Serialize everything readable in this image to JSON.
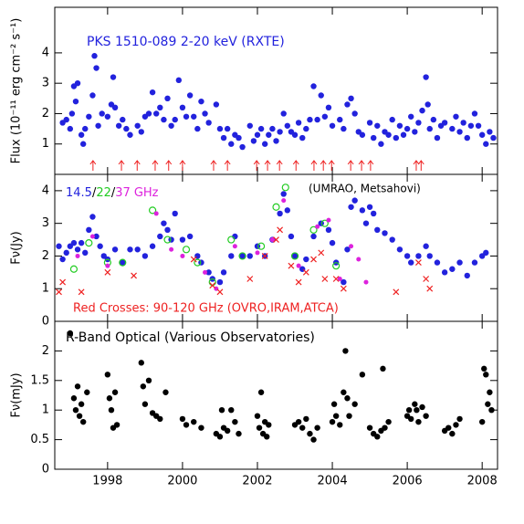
{
  "chart_data": [
    {
      "type": "scatter",
      "title": "PKS 1510-089   2-20 keV (RXTE)",
      "title_color": "#2222dd",
      "ylabel": "Flux (10⁻¹¹ erg cm⁻² s⁻¹)",
      "xlim": [
        1996.59,
        2008.41
      ],
      "ylim": [
        0,
        5.5
      ],
      "yticks": [
        1,
        2,
        3,
        4
      ],
      "arrow_color": "#ee2222",
      "arrows": [
        1997.61,
        1998.37,
        1998.79,
        1999.27,
        1999.63,
        2000.0,
        2000.83,
        2001.2,
        2001.98,
        2002.27,
        2002.59,
        2003.03,
        2003.51,
        2003.76,
        2003.98,
        2004.49,
        2004.78,
        2005.02,
        2006.24,
        2006.37
      ],
      "series": [
        {
          "color": "#2222dd",
          "marker": "circle",
          "x": [
            1996.8,
            1996.9,
            1997.0,
            1997.05,
            1997.1,
            1997.15,
            1997.2,
            1997.3,
            1997.35,
            1997.4,
            1997.5,
            1997.6,
            1997.65,
            1997.7,
            1997.75,
            1997.85,
            1998.0,
            1998.1,
            1998.15,
            1998.2,
            1998.3,
            1998.4,
            1998.5,
            1998.6,
            1998.8,
            1998.9,
            1999.0,
            1999.1,
            1999.2,
            1999.3,
            1999.4,
            1999.5,
            1999.6,
            1999.7,
            1999.8,
            1999.9,
            2000.0,
            2000.1,
            2000.2,
            2000.3,
            2000.4,
            2000.5,
            2000.6,
            2000.7,
            2000.9,
            2001.0,
            2001.1,
            2001.2,
            2001.3,
            2001.4,
            2001.5,
            2001.6,
            2001.8,
            2001.9,
            2002.0,
            2002.1,
            2002.2,
            2002.3,
            2002.4,
            2002.5,
            2002.6,
            2002.7,
            2002.8,
            2002.9,
            2003.0,
            2003.1,
            2003.2,
            2003.3,
            2003.4,
            2003.5,
            2003.6,
            2003.7,
            2003.8,
            2003.9,
            2004.0,
            2004.2,
            2004.3,
            2004.4,
            2004.5,
            2004.6,
            2004.7,
            2004.8,
            2005.0,
            2005.1,
            2005.2,
            2005.3,
            2005.4,
            2005.5,
            2005.6,
            2005.7,
            2005.8,
            2005.9,
            2006.0,
            2006.1,
            2006.2,
            2006.3,
            2006.4,
            2006.5,
            2006.55,
            2006.6,
            2006.7,
            2006.8,
            2006.9,
            2007.0,
            2007.2,
            2007.3,
            2007.4,
            2007.5,
            2007.6,
            2007.7,
            2007.8,
            2007.9,
            2008.0,
            2008.1,
            2008.2,
            2008.3
          ],
          "values": [
            1.7,
            1.8,
            1.5,
            2.0,
            2.9,
            2.4,
            3.0,
            1.3,
            1.0,
            1.5,
            1.9,
            2.6,
            3.9,
            3.5,
            1.6,
            2.0,
            1.9,
            2.3,
            3.2,
            2.2,
            1.6,
            1.8,
            1.5,
            1.3,
            1.6,
            1.4,
            1.9,
            2.0,
            2.7,
            2.0,
            2.2,
            1.8,
            2.5,
            1.6,
            1.8,
            3.1,
            2.2,
            1.9,
            2.6,
            1.9,
            1.5,
            2.4,
            2.0,
            1.7,
            2.3,
            1.5,
            1.2,
            1.5,
            1.0,
            1.3,
            1.2,
            0.9,
            1.6,
            1.1,
            1.3,
            1.5,
            1.0,
            1.3,
            1.5,
            1.1,
            1.4,
            2.0,
            1.6,
            1.4,
            1.3,
            1.7,
            1.2,
            1.5,
            1.8,
            2.9,
            1.8,
            2.6,
            1.9,
            2.2,
            1.6,
            1.8,
            1.5,
            2.3,
            2.5,
            2.0,
            1.4,
            1.3,
            1.7,
            1.2,
            1.6,
            1.0,
            1.4,
            1.3,
            1.8,
            1.2,
            1.6,
            1.3,
            1.5,
            1.9,
            1.4,
            1.7,
            2.1,
            3.2,
            2.3,
            1.5,
            1.8,
            1.2,
            1.6,
            1.7,
            1.5,
            1.9,
            1.4,
            1.7,
            1.2,
            1.6,
            2.0,
            1.6,
            1.3,
            1.0,
            1.4,
            1.2
          ]
        }
      ]
    },
    {
      "type": "scatter",
      "ylabel": "Fν(Jy)",
      "xlim": [
        1996.59,
        2008.41
      ],
      "ylim": [
        0,
        4.5
      ],
      "yticks": [
        0,
        1,
        2,
        3,
        4
      ],
      "annotation": "(UMRAO, Metsahovi)",
      "legend_separator": "/",
      "legend_unit": "GHz",
      "series": [
        {
          "name": "14.5",
          "color": "#2222dd",
          "marker": "circle",
          "x": [
            1996.7,
            1996.8,
            1996.9,
            1997.0,
            1997.1,
            1997.2,
            1997.3,
            1997.4,
            1997.5,
            1997.6,
            1997.7,
            1997.8,
            1997.9,
            1998.0,
            1998.2,
            1998.4,
            1998.6,
            1998.8,
            1999.0,
            1999.2,
            1999.4,
            1999.5,
            1999.6,
            1999.7,
            1999.8,
            2000.0,
            2000.2,
            2000.4,
            2000.5,
            2000.7,
            2000.8,
            2001.0,
            2001.1,
            2001.3,
            2001.4,
            2001.6,
            2001.8,
            2002.0,
            2002.2,
            2002.4,
            2002.6,
            2002.7,
            2002.8,
            2002.9,
            2003.0,
            2003.2,
            2003.3,
            2003.5,
            2003.7,
            2003.9,
            2004.0,
            2004.1,
            2004.3,
            2004.4,
            2004.5,
            2004.6,
            2004.8,
            2004.9,
            2005.0,
            2005.1,
            2005.2,
            2005.4,
            2005.6,
            2005.8,
            2006.0,
            2006.1,
            2006.3,
            2006.5,
            2006.6,
            2006.8,
            2007.0,
            2007.2,
            2007.4,
            2007.6,
            2007.8,
            2008.0,
            2008.1
          ],
          "values": [
            2.3,
            1.9,
            2.1,
            2.3,
            2.4,
            2.2,
            2.4,
            2.1,
            2.8,
            3.2,
            2.6,
            2.3,
            2.0,
            1.9,
            2.2,
            1.8,
            2.2,
            2.2,
            2.0,
            2.3,
            2.6,
            3.0,
            2.8,
            2.5,
            3.3,
            2.5,
            2.6,
            2.0,
            1.8,
            1.5,
            1.3,
            1.2,
            1.5,
            2.0,
            2.6,
            2.0,
            2.0,
            2.3,
            2.0,
            2.5,
            3.3,
            3.9,
            3.4,
            2.6,
            2.0,
            1.6,
            1.9,
            2.6,
            3.0,
            2.8,
            2.4,
            1.8,
            1.2,
            2.2,
            3.5,
            3.7,
            3.4,
            3.0,
            3.5,
            3.3,
            2.8,
            2.7,
            2.5,
            2.2,
            2.0,
            1.8,
            2.0,
            2.3,
            2.0,
            1.8,
            1.5,
            1.6,
            1.8,
            1.4,
            1.8,
            2.0,
            2.1
          ]
        },
        {
          "name": "22",
          "color": "#22cc22",
          "marker": "open-circle",
          "x": [
            1997.1,
            1997.5,
            1998.0,
            1998.4,
            1999.2,
            1999.6,
            2000.1,
            2000.4,
            2000.8,
            2001.3,
            2001.6,
            2002.1,
            2002.5,
            2002.75,
            2003.0,
            2003.5,
            2003.8,
            2004.1
          ],
          "values": [
            1.6,
            2.4,
            1.8,
            1.8,
            3.4,
            2.5,
            2.2,
            1.8,
            1.2,
            2.5,
            2.0,
            2.3,
            3.5,
            4.1,
            2.0,
            2.8,
            3.0,
            1.7
          ]
        },
        {
          "name": "37",
          "color": "#dd22dd",
          "marker": "circle-small",
          "x": [
            1997.2,
            1997.6,
            1998.0,
            1999.3,
            1999.7,
            2000.0,
            2000.6,
            2000.9,
            2001.4,
            2002.0,
            2002.4,
            2002.7,
            2003.1,
            2003.6,
            2003.9,
            2004.2,
            2004.5,
            2004.7,
            2004.9
          ],
          "values": [
            2.0,
            2.6,
            1.7,
            3.3,
            2.2,
            2.0,
            1.5,
            1.0,
            2.3,
            2.1,
            2.5,
            3.7,
            1.7,
            2.9,
            3.1,
            1.3,
            2.3,
            1.9,
            1.2
          ]
        },
        {
          "name": "Red Crosses: 90-120 GHz (OVRO,IRAM,ATCA)",
          "color": "#ee2222",
          "marker": "cross",
          "x": [
            1996.7,
            1996.8,
            1997.3,
            1998.0,
            1998.7,
            2000.3,
            2000.8,
            2001.0,
            2001.8,
            2002.2,
            2002.5,
            2002.6,
            2002.9,
            2003.1,
            2003.3,
            2003.5,
            2003.7,
            2003.8,
            2004.1,
            2004.3,
            2005.7,
            2006.3,
            2006.5,
            2006.6
          ],
          "values": [
            0.9,
            1.2,
            0.9,
            1.5,
            1.4,
            1.9,
            1.1,
            0.9,
            1.3,
            2.0,
            2.5,
            2.8,
            1.7,
            1.2,
            1.5,
            1.9,
            2.1,
            1.3,
            1.3,
            1.0,
            0.9,
            1.8,
            1.3,
            1.0
          ]
        }
      ]
    },
    {
      "type": "scatter",
      "title": "R-Band Optical (Various Observatories)",
      "title_color": "#000000",
      "ylabel": "Fν(mJy)",
      "xlim": [
        1996.59,
        2008.41
      ],
      "xticks": [
        1998,
        2000,
        2002,
        2004,
        2006,
        2008
      ],
      "ylim": [
        0,
        2.5
      ],
      "yticks": [
        0,
        0.5,
        1,
        1.5,
        2
      ],
      "series": [
        {
          "color": "#000000",
          "marker": "circle",
          "x": [
            1997.0,
            1997.1,
            1997.15,
            1997.2,
            1997.25,
            1997.3,
            1997.35,
            1997.45,
            1998.0,
            1998.05,
            1998.1,
            1998.15,
            1998.2,
            1998.25,
            1998.9,
            1998.95,
            1999.0,
            1999.1,
            1999.2,
            1999.3,
            1999.4,
            1999.55,
            2000.0,
            2000.1,
            2000.3,
            2000.5,
            2000.9,
            2001.0,
            2001.05,
            2001.1,
            2001.2,
            2001.3,
            2001.4,
            2001.5,
            2002.0,
            2002.05,
            2002.1,
            2002.15,
            2002.2,
            2002.25,
            2002.3,
            2003.0,
            2003.1,
            2003.2,
            2003.3,
            2003.4,
            2003.5,
            2003.6,
            2004.0,
            2004.05,
            2004.1,
            2004.2,
            2004.3,
            2004.35,
            2004.4,
            2004.45,
            2004.6,
            2004.8,
            2005.0,
            2005.1,
            2005.2,
            2005.3,
            2005.35,
            2005.4,
            2005.5,
            2006.0,
            2006.05,
            2006.1,
            2006.2,
            2006.25,
            2006.3,
            2006.4,
            2006.5,
            2007.0,
            2007.1,
            2007.2,
            2007.3,
            2007.4,
            2008.0,
            2008.05,
            2008.1,
            2008.15,
            2008.2,
            2008.25
          ],
          "values": [
            2.3,
            1.2,
            1.0,
            1.4,
            0.9,
            1.1,
            0.8,
            1.3,
            1.6,
            1.2,
            1.0,
            0.7,
            1.3,
            0.75,
            1.8,
            1.4,
            1.1,
            1.5,
            0.95,
            0.9,
            0.85,
            1.3,
            0.85,
            0.75,
            0.8,
            0.7,
            0.6,
            0.55,
            1.0,
            0.7,
            0.65,
            1.0,
            0.8,
            0.6,
            0.9,
            0.7,
            1.3,
            0.6,
            0.8,
            0.55,
            0.75,
            0.75,
            0.8,
            0.7,
            0.85,
            0.6,
            0.5,
            0.7,
            0.8,
            1.1,
            0.9,
            0.75,
            1.3,
            2.0,
            1.2,
            0.9,
            1.1,
            1.6,
            0.7,
            0.6,
            0.55,
            0.65,
            1.7,
            0.7,
            0.8,
            0.9,
            1.0,
            0.85,
            1.1,
            1.0,
            0.8,
            1.05,
            0.9,
            0.65,
            0.7,
            0.6,
            0.75,
            0.85,
            0.8,
            1.7,
            1.6,
            1.1,
            1.3,
            1.0
          ]
        }
      ]
    }
  ]
}
